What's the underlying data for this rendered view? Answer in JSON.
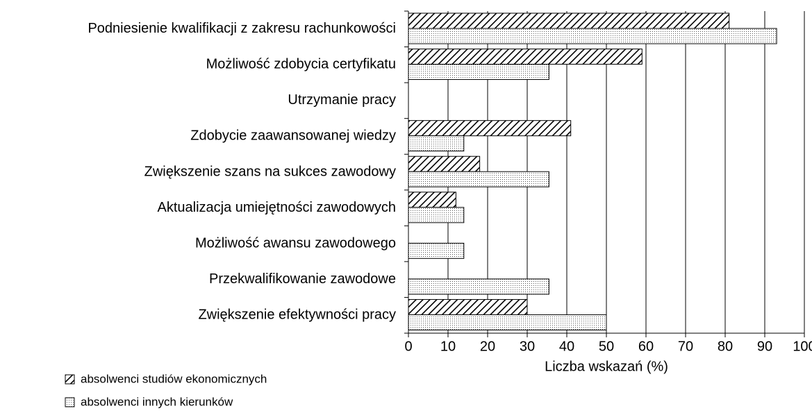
{
  "chart_data": {
    "type": "hbar",
    "categories": [
      "Podniesienie kwalifikacji z zakresu rachunkowości",
      "Możliwość zdobycia certyfikatu",
      "Utrzymanie pracy",
      "Zdobycie zaawansowanej wiedzy",
      "Zwiększenie szans na sukces zawodowy",
      "Aktualizacja umiejętności zawodowych",
      "Możliwość awansu zawodowego",
      "Przekwalifikowanie zawodowe",
      "Zwiększenie efektywności pracy"
    ],
    "series": [
      {
        "name": "absolwenci studiów ekonomicznych",
        "pattern": "hatch",
        "color": "#000000",
        "values": [
          81,
          59,
          0,
          41,
          18,
          12,
          0,
          0,
          30
        ]
      },
      {
        "name": "absolwenci innych kierunków",
        "pattern": "dots",
        "color": "#000000",
        "values": [
          93,
          35.5,
          0,
          14,
          35.5,
          14,
          14,
          35.5,
          50
        ]
      }
    ],
    "xlabel": "Liczba wskazań (%)",
    "xlim": [
      0,
      100
    ],
    "xticks": [
      0,
      10,
      20,
      30,
      40,
      50,
      60,
      70,
      80,
      90,
      100
    ],
    "grid": true
  }
}
